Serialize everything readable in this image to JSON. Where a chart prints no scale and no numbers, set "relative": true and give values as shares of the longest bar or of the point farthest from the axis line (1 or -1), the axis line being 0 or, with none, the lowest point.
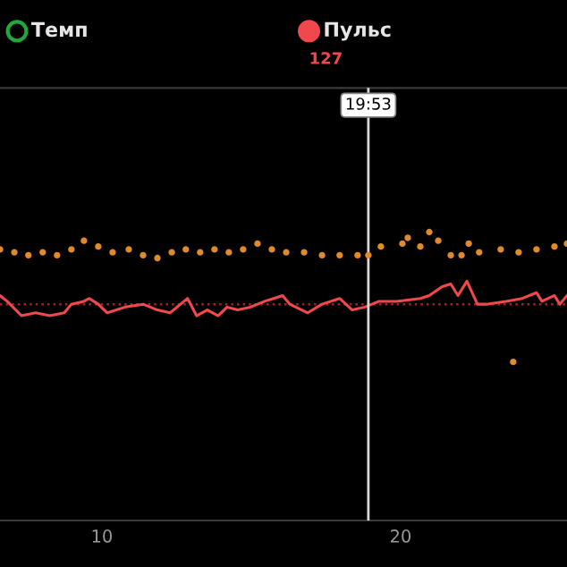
{
  "chart_data": {
    "type": "line",
    "relative": true,
    "legend": "top",
    "grid": false,
    "xlim": [
      6.59,
      25.57
    ],
    "xticks": [
      10,
      20
    ],
    "series": [
      {
        "name": "Темп",
        "type": "scatter",
        "color": "#1fa83c"
      },
      {
        "name": "Пульс",
        "color": "#f0484c",
        "x": [
          6.59,
          6.83,
          7.31,
          7.78,
          8.26,
          8.74,
          8.98,
          9.4,
          9.58,
          9.88,
          10.18,
          10.78,
          11.38,
          11.86,
          12.28,
          12.87,
          13.17,
          13.53,
          13.89,
          14.19,
          14.55,
          14.97,
          15.45,
          15.75,
          16.05,
          16.29,
          16.89,
          17.37,
          17.96,
          18.38,
          18.8,
          19.28,
          19.88,
          20.66,
          20.96,
          21.38,
          21.68,
          21.92,
          22.22,
          22.57,
          22.87,
          23.53,
          24.07,
          24.55,
          24.73,
          25.15,
          25.33,
          25.57
        ],
        "values": [
          0.78,
          0.76,
          0.71,
          0.72,
          0.71,
          0.72,
          0.75,
          0.76,
          0.77,
          0.75,
          0.72,
          0.74,
          0.75,
          0.73,
          0.72,
          0.77,
          0.71,
          0.73,
          0.71,
          0.74,
          0.73,
          0.74,
          0.76,
          0.77,
          0.78,
          0.75,
          0.72,
          0.75,
          0.77,
          0.73,
          0.74,
          0.76,
          0.76,
          0.77,
          0.78,
          0.81,
          0.82,
          0.78,
          0.83,
          0.75,
          0.75,
          0.76,
          0.77,
          0.79,
          0.76,
          0.78,
          0.75,
          0.78
        ]
      },
      {
        "type": "scatter",
        "color": "#e08a2a",
        "x": [
          6.59,
          7.07,
          7.54,
          8.02,
          8.5,
          8.98,
          9.4,
          9.88,
          10.36,
          10.9,
          11.38,
          11.86,
          12.34,
          12.81,
          13.29,
          13.77,
          14.25,
          14.73,
          15.21,
          15.69,
          16.17,
          16.77,
          17.37,
          17.96,
          18.56,
          18.92,
          19.34,
          20.06,
          20.24,
          20.66,
          20.96,
          21.26,
          21.68,
          22.04,
          22.28,
          22.63,
          23.35,
          23.95,
          24.55,
          25.15,
          25.57,
          23.77
        ],
        "values": [
          0.94,
          0.93,
          0.92,
          0.93,
          0.92,
          0.94,
          0.97,
          0.95,
          0.93,
          0.94,
          0.92,
          0.91,
          0.93,
          0.94,
          0.93,
          0.94,
          0.93,
          0.94,
          0.96,
          0.94,
          0.93,
          0.93,
          0.92,
          0.92,
          0.92,
          0.92,
          0.95,
          0.96,
          0.98,
          0.95,
          1.0,
          0.97,
          0.92,
          0.92,
          0.96,
          0.93,
          0.94,
          0.93,
          0.94,
          0.95,
          0.96,
          0.55
        ]
      }
    ],
    "ref_lines": [
      {
        "axis": "x",
        "value": 18.92,
        "label": "19:53",
        "color": "#d8d8d8",
        "line_style": "solid"
      },
      {
        "axis": "y",
        "value": 0.75,
        "label": null,
        "color": "#b01c22",
        "line_style": "dotted"
      }
    ],
    "annotations": [
      "127"
    ]
  }
}
